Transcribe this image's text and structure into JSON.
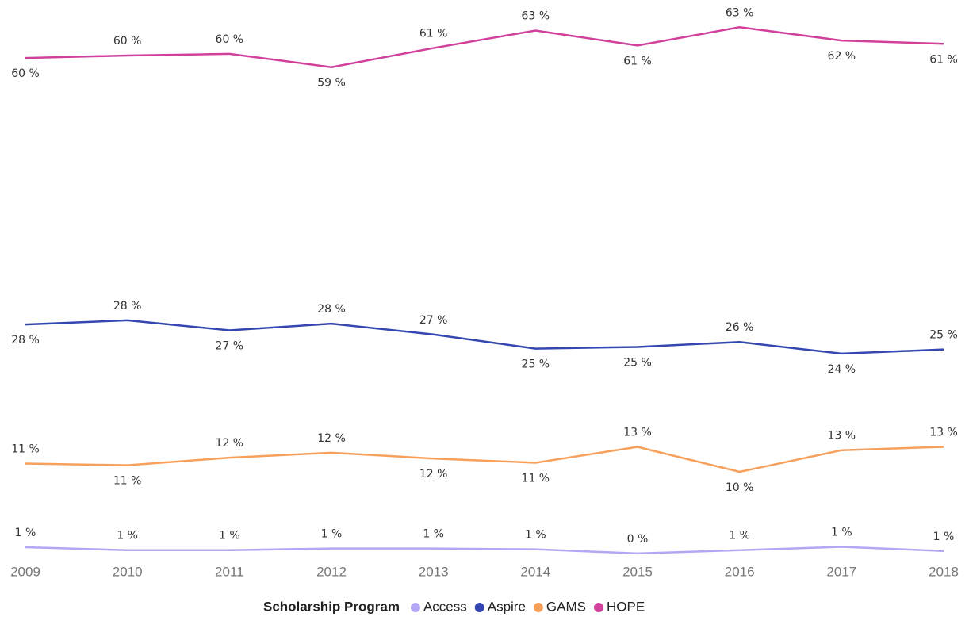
{
  "chart_data": {
    "type": "line",
    "categories": [
      "2009",
      "2010",
      "2011",
      "2012",
      "2013",
      "2014",
      "2015",
      "2016",
      "2017",
      "2018"
    ],
    "legend_title": "Scholarship Program",
    "ylim": [
      0,
      65
    ],
    "series": [
      {
        "name": "Access",
        "color": "#b3a7f5",
        "values": [
          0.95,
          0.6,
          0.6,
          0.8,
          0.8,
          0.7,
          0.2,
          0.6,
          1.0,
          0.5
        ],
        "value_labels": [
          "1 %",
          "1 %",
          "1 %",
          "1 %",
          "1 %",
          "1 %",
          "0 %",
          "1 %",
          "1 %",
          "1 %"
        ]
      },
      {
        "name": "Aspire",
        "color": "#3446b0",
        "values": [
          27.7,
          28.2,
          27.0,
          27.8,
          26.5,
          24.8,
          25.0,
          25.6,
          24.2,
          24.7
        ],
        "value_labels": [
          "28 %",
          "28 %",
          "27 %",
          "28 %",
          "27 %",
          "25 %",
          "25 %",
          "26 %",
          "24 %",
          "25 %"
        ]
      },
      {
        "name": "GAMS",
        "color": "#f7a05c",
        "values": [
          11.0,
          10.8,
          11.7,
          12.3,
          11.6,
          11.1,
          13.0,
          10.0,
          12.6,
          13.0
        ],
        "value_labels": [
          "11 %",
          "11 %",
          "12 %",
          "12 %",
          "12 %",
          "11 %",
          "13 %",
          "10 %",
          "13 %",
          "13 %"
        ]
      },
      {
        "name": "HOPE",
        "color": "#d1419c",
        "values": [
          59.7,
          60.0,
          60.2,
          58.6,
          60.9,
          63.0,
          61.2,
          63.4,
          61.8,
          61.4
        ],
        "value_labels": [
          "60 %",
          "60 %",
          "60 %",
          "59 %",
          "61 %",
          "63 %",
          "61 %",
          "63 %",
          "62 %",
          "61 %"
        ]
      }
    ]
  }
}
